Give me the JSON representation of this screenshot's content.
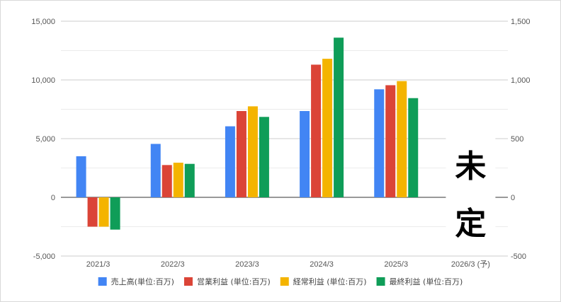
{
  "chart_data": {
    "type": "bar",
    "categories": [
      "2021/3",
      "2022/3",
      "2023/3",
      "2024/3",
      "2025/3",
      "2026/3 (予)"
    ],
    "series": [
      {
        "name": "売上高(単位:百万)",
        "color": "#4285f4",
        "axis": "left",
        "values": [
          3500,
          4550,
          6050,
          7350,
          9200,
          null
        ]
      },
      {
        "name": "営業利益 (単位:百万)",
        "color": "#db4437",
        "axis": "right",
        "values": [
          -250,
          275,
          735,
          1130,
          955,
          null
        ]
      },
      {
        "name": "経常利益 (単位:百万)",
        "color": "#f4b400",
        "axis": "right",
        "values": [
          -250,
          295,
          775,
          1180,
          990,
          null
        ]
      },
      {
        "name": "最終利益 (単位:百万)",
        "color": "#0f9d58",
        "axis": "right",
        "values": [
          -275,
          285,
          685,
          1360,
          845,
          null
        ]
      }
    ],
    "left_axis": {
      "ylim": [
        -5000,
        15000
      ],
      "ticks": [
        "-5,000",
        "0",
        "5,000",
        "10,000",
        "15,000"
      ]
    },
    "right_axis": {
      "ylim": [
        -500,
        1500
      ],
      "ticks": [
        "-500",
        "0",
        "500",
        "1,000",
        "1,500"
      ]
    },
    "grid": true,
    "legend_position": "bottom",
    "annotation": [
      "未",
      "定"
    ]
  }
}
